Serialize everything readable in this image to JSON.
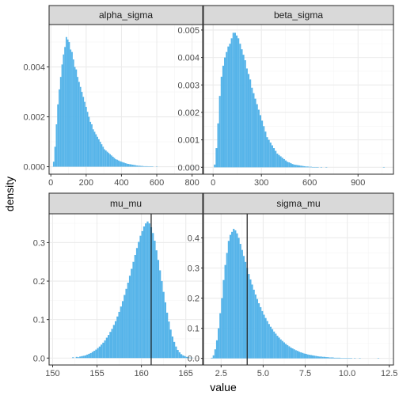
{
  "figure": {
    "xlabel": "value",
    "ylabel": "density",
    "colors": {
      "bar": "#56b4e9",
      "strip": "#d9d9d9",
      "panel_border": "#333333",
      "grid_major": "#ebebeb",
      "grid_minor": "#f4f4f4",
      "vline": "#1a1a1a",
      "tick_text": "#4d4d4d"
    }
  },
  "chart_data": [
    {
      "type": "bar",
      "title": "alpha_sigma",
      "xlim": [
        -10,
        860
      ],
      "ylim": [
        -0.0003,
        0.0057
      ],
      "xticks": [
        0,
        200,
        400,
        600,
        800
      ],
      "xtick_labels": [
        "0",
        "200",
        "400",
        "600",
        "800"
      ],
      "yticks": [
        0,
        0.002,
        0.004
      ],
      "ytick_labels": [
        "0.000",
        "0.002",
        "0.004"
      ],
      "vline": null,
      "grid": true,
      "histogram": {
        "bin_width": 8,
        "x_start": 12,
        "values": [
          0.0002,
          0.0008,
          0.0017,
          0.0025,
          0.0031,
          0.0036,
          0.0041,
          0.0045,
          0.0048,
          0.0052,
          0.0051,
          0.005,
          0.0047,
          0.0046,
          0.0043,
          0.004,
          0.0039,
          0.0036,
          0.0034,
          0.0032,
          0.003,
          0.0028,
          0.0026,
          0.0024,
          0.0022,
          0.002,
          0.0018,
          0.0017,
          0.0015,
          0.0014,
          0.0013,
          0.0012,
          0.0011,
          0.001,
          0.0009,
          0.0008,
          0.0007,
          0.00065,
          0.0006,
          0.00055,
          0.0005,
          0.00045,
          0.0004,
          0.00035,
          0.0003,
          0.00028,
          0.00025,
          0.00022,
          0.0002,
          0.00018,
          0.00016,
          0.00014,
          0.00012,
          0.00011,
          0.0001,
          9e-05,
          8e-05,
          7e-05,
          6e-05,
          5e-05,
          4e-05,
          4e-05,
          3e-05,
          3e-05,
          2e-05,
          2e-05,
          2e-05,
          1e-05,
          1e-05,
          1e-05,
          1e-05,
          0,
          0,
          1e-05,
          0,
          0,
          0,
          0,
          0,
          0,
          0,
          0,
          0,
          0,
          0,
          0,
          0,
          0,
          0,
          0,
          0,
          0,
          0,
          0,
          0,
          0,
          0,
          0,
          0,
          1e-05
        ]
      }
    },
    {
      "type": "bar",
      "title": "beta_sigma",
      "xlim": [
        -60,
        1120
      ],
      "ylim": [
        -0.00025,
        0.0052
      ],
      "xticks": [
        0,
        300,
        600,
        900
      ],
      "xtick_labels": [
        "0",
        "300",
        "600",
        "900"
      ],
      "yticks": [
        0,
        0.001,
        0.002,
        0.003,
        0.004,
        0.005
      ],
      "ytick_labels": [
        "0.000",
        "0.001",
        "0.002",
        "0.003",
        "0.004",
        "0.005"
      ],
      "vline": null,
      "grid": true,
      "histogram": {
        "bin_width": 10.5,
        "x_start": 5,
        "values": [
          0.0001,
          0.0007,
          0.0016,
          0.0026,
          0.0033,
          0.0037,
          0.004,
          0.0042,
          0.0044,
          0.0045,
          0.0047,
          0.0049,
          0.0049,
          0.0048,
          0.0047,
          0.0045,
          0.0043,
          0.0041,
          0.0039,
          0.0036,
          0.0034,
          0.0032,
          0.0029,
          0.0027,
          0.0025,
          0.0023,
          0.0021,
          0.0019,
          0.0017,
          0.0015,
          0.0013,
          0.0011,
          0.001,
          0.0009,
          0.0008,
          0.0007,
          0.0006,
          0.0005,
          0.00045,
          0.0004,
          0.00035,
          0.0003,
          0.00025,
          0.0002,
          0.00018,
          0.00015,
          0.00012,
          0.0001,
          9e-05,
          8e-05,
          7e-05,
          6e-05,
          5e-05,
          4e-05,
          3e-05,
          3e-05,
          2e-05,
          2e-05,
          1e-05,
          1e-05,
          1e-05,
          1e-05,
          0,
          1e-05,
          0,
          0,
          1e-05,
          0,
          0,
          0,
          0,
          0,
          0,
          0,
          0,
          0,
          0,
          0,
          0,
          0,
          0,
          0,
          0,
          0,
          0,
          0,
          0,
          0,
          0,
          0,
          0,
          0,
          0,
          0,
          0,
          0,
          0,
          0,
          0,
          0,
          1e-05
        ]
      }
    },
    {
      "type": "bar",
      "title": "mu_mu",
      "xlim": [
        149.6,
        166.9
      ],
      "ylim": [
        -0.018,
        0.375
      ],
      "xticks": [
        150,
        155,
        160,
        165
      ],
      "xtick_labels": [
        "150",
        "155",
        "160",
        "165"
      ],
      "yticks": [
        0,
        0.1,
        0.2,
        0.3
      ],
      "ytick_labels": [
        "0.0",
        "0.1",
        "0.2",
        "0.3"
      ],
      "vline": 161.1,
      "grid": true,
      "histogram": {
        "bin_width": 0.2,
        "x_start": 152.2,
        "values": [
          0.002,
          0,
          0.003,
          0.002,
          0.004,
          0.005,
          0.006,
          0.007,
          0.009,
          0.011,
          0.013,
          0.016,
          0.019,
          0.022,
          0.026,
          0.03,
          0.035,
          0.04,
          0.046,
          0.053,
          0.06,
          0.068,
          0.076,
          0.086,
          0.096,
          0.108,
          0.12,
          0.134,
          0.148,
          0.164,
          0.18,
          0.196,
          0.214,
          0.232,
          0.25,
          0.268,
          0.286,
          0.302,
          0.318,
          0.33,
          0.342,
          0.35,
          0.355,
          0.35,
          0.34,
          0.325,
          0.305,
          0.28,
          0.255,
          0.228,
          0.2,
          0.172,
          0.145,
          0.118,
          0.095,
          0.074,
          0.056,
          0.042,
          0.03,
          0.021,
          0.015,
          0.01,
          0.007,
          0.005,
          0.003,
          0.002,
          0.001,
          0.001
        ]
      }
    },
    {
      "type": "bar",
      "title": "sigma_mu",
      "xlim": [
        1.45,
        12.75
      ],
      "ylim": [
        -0.022,
        0.48
      ],
      "xticks": [
        2.5,
        5.0,
        7.5,
        10.0,
        12.5
      ],
      "xtick_labels": [
        "2.5",
        "5.0",
        "7.5",
        "10.0",
        "12.5"
      ],
      "yticks": [
        0,
        0.1,
        0.2,
        0.3,
        0.4
      ],
      "ytick_labels": [
        "0.0",
        "0.1",
        "0.2",
        "0.3",
        "0.4"
      ],
      "vline": 4.05,
      "grid": true,
      "histogram": {
        "bin_width": 0.1,
        "x_start": 1.9,
        "values": [
          0.002,
          0.01,
          0.03,
          0.06,
          0.1,
          0.15,
          0.2,
          0.26,
          0.31,
          0.35,
          0.39,
          0.41,
          0.42,
          0.43,
          0.425,
          0.415,
          0.4,
          0.38,
          0.36,
          0.34,
          0.32,
          0.3,
          0.28,
          0.262,
          0.245,
          0.228,
          0.212,
          0.197,
          0.183,
          0.17,
          0.157,
          0.145,
          0.134,
          0.124,
          0.114,
          0.105,
          0.097,
          0.089,
          0.082,
          0.075,
          0.069,
          0.063,
          0.058,
          0.053,
          0.048,
          0.044,
          0.04,
          0.036,
          0.033,
          0.03,
          0.027,
          0.025,
          0.022,
          0.02,
          0.018,
          0.016,
          0.015,
          0.013,
          0.012,
          0.011,
          0.01,
          0.009,
          0.008,
          0.007,
          0.006,
          0.006,
          0.005,
          0.005,
          0.004,
          0.004,
          0.003,
          0.003,
          0.003,
          0.002,
          0.002,
          0.002,
          0.002,
          0.001,
          0.001,
          0.001,
          0.001,
          0.001,
          0.001,
          0.001,
          0,
          0.001,
          0,
          0,
          0.001,
          0,
          0,
          0,
          0,
          0,
          0,
          0,
          0,
          0,
          0,
          0.001
        ]
      }
    }
  ]
}
